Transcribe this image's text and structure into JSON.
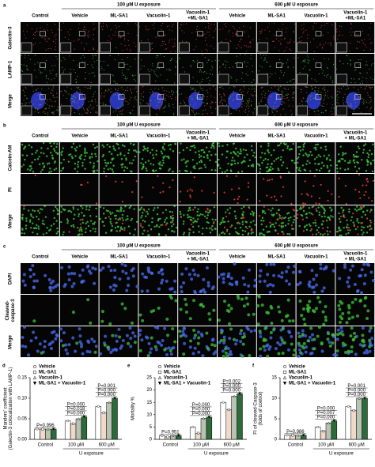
{
  "figure": {
    "panels": [
      {
        "letter": "a",
        "groups": [
          "100 μM U exposure",
          "600 μM U exposure"
        ],
        "columns": [
          [
            "Control"
          ],
          [
            "Vehicle"
          ],
          [
            "ML-SA1"
          ],
          [
            "Vacuolin-1"
          ],
          [
            "Vacuolin-1",
            "+ML-SA1"
          ],
          [
            "Vehicle"
          ],
          [
            "ML-SA1"
          ],
          [
            "Vacuolin-1"
          ],
          [
            "Vacuolin-1",
            "+ML-SA1"
          ]
        ],
        "rows": [
          {
            "label": [
              "Galectin-3"
            ],
            "color": "#e8413b"
          },
          {
            "label": [
              "LAMP-1"
            ],
            "color": "#3cc43c"
          },
          {
            "label": [
              "Merge"
            ],
            "color": "#000000"
          }
        ]
      },
      {
        "letter": "b",
        "groups": [
          "100 μM U exposure",
          "600 μM U exposure"
        ],
        "columns": [
          [
            "Control"
          ],
          [
            "Vehicle"
          ],
          [
            "ML-SA1"
          ],
          [
            "Vacuolin-1"
          ],
          [
            "Vacuolin-1",
            "+ ML-SA1"
          ],
          [
            "Vehicle"
          ],
          [
            "ML-SA1"
          ],
          [
            "Vacuolin-1"
          ],
          [
            "Vacuolin-1",
            "+ ML-SA1"
          ]
        ],
        "rows": [
          {
            "label": [
              "Calcein-AM"
            ],
            "color": "#3cc43c"
          },
          {
            "label": [
              "PI"
            ],
            "color": "#e8413b"
          },
          {
            "label": [
              "Merge"
            ],
            "color": "#000000"
          }
        ]
      },
      {
        "letter": "c",
        "groups": [
          "100 μM U exposure",
          "600 μM U exposure"
        ],
        "columns": [
          [
            "Control"
          ],
          [
            "Vehicle"
          ],
          [
            "ML-SA1"
          ],
          [
            "Vacuolin-1"
          ],
          [
            "Vacuolin-1",
            "+ ML-SA1"
          ],
          [
            "Vehicle"
          ],
          [
            "ML-SA1"
          ],
          [
            "Vacuolin-1"
          ],
          [
            "Vacuolin-1",
            "+ ML-SA1"
          ]
        ],
        "rows": [
          {
            "label": [
              "DAPI"
            ],
            "color": "#4a6cf0"
          },
          {
            "label": [
              "Cleaved-",
              "caspase-3"
            ],
            "color": "#3cc43c"
          },
          {
            "label": [
              "Merge"
            ],
            "color": "#000000"
          }
        ]
      }
    ]
  },
  "chart_data": [
    {
      "type": "bar",
      "letter": "d",
      "ylabel": [
        "Manders' coefficient",
        "(Galectin-3 colocalization with LAMP-1)"
      ],
      "xlabel": "U exposure",
      "categories": [
        "Control",
        "100 μM",
        "600 μM"
      ],
      "series": [
        {
          "name": "Vehicle",
          "color": "#ffffff",
          "values": [
            0.025,
            0.045,
            0.08
          ]
        },
        {
          "name": "ML-SA1",
          "color": "#efd9c8",
          "values": [
            0.025,
            0.038,
            0.065
          ]
        },
        {
          "name": "Vacuolin-1",
          "color": "#b9c3b3",
          "values": [
            0.025,
            0.05,
            0.09
          ]
        },
        {
          "name": "ML-SA1 + Vacuolin-1",
          "color": "#2e6b3a",
          "values": [
            0.025,
            0.055,
            0.1
          ]
        }
      ],
      "ylim": [
        0,
        0.15
      ],
      "yticks": [
        {
          "value": 0,
          "label": "0.00"
        },
        0.05,
        {
          "value": 0.1,
          "label": "0.10"
        },
        0.15
      ],
      "annotations": [
        "P=0.996",
        "P=0.000",
        "P=0.000",
        "P=0.018",
        "P=0.000",
        "P=0.000",
        "P=0.001"
      ]
    },
    {
      "type": "bar",
      "letter": "e",
      "ylabel": [
        "Mortality %"
      ],
      "xlabel": "U exposure",
      "categories": [
        "Control",
        "100 μM",
        "600 μM"
      ],
      "series": [
        {
          "name": "Vehicle",
          "color": "#ffffff",
          "values": [
            1.5,
            5,
            15
          ]
        },
        {
          "name": "ML-SA1",
          "color": "#efd9c8",
          "values": [
            1,
            2.5,
            12
          ]
        },
        {
          "name": "Vacuolin-1",
          "color": "#b9c3b3",
          "values": [
            1.5,
            8.5,
            17.5
          ]
        },
        {
          "name": "ML-SA1 + Vacuolin-1",
          "color": "#2e6b3a",
          "values": [
            1.5,
            9,
            18.5
          ]
        }
      ],
      "ylim": [
        0,
        25
      ],
      "yticks": [
        0,
        5,
        10,
        15,
        20,
        25
      ],
      "annotations": [
        "P=0.951",
        "P=0.000",
        "P=0.000",
        "P=0.000",
        "P=0.000",
        "P=0.000",
        "P=0.002"
      ]
    },
    {
      "type": "bar",
      "letter": "f",
      "ylabel": [
        "FI of cleaved-Caspase-3",
        "(folds of control)"
      ],
      "xlabel": "U exposure",
      "categories": [
        "Control",
        "100 μM",
        "600 μM"
      ],
      "series": [
        {
          "name": "Vehicle",
          "color": "#ffffff",
          "values": [
            1,
            3,
            8
          ]
        },
        {
          "name": "ML-SA1",
          "color": "#efd9c8",
          "values": [
            1,
            2,
            7
          ]
        },
        {
          "name": "Vacuolin-1",
          "color": "#b9c3b3",
          "values": [
            1,
            4,
            10
          ]
        },
        {
          "name": "ML-SA1 + Vacuolin-1",
          "color": "#2e6b3a",
          "values": [
            1,
            4.5,
            10
          ]
        }
      ],
      "ylim": [
        0,
        15
      ],
      "yticks": [
        0,
        5,
        10,
        15
      ],
      "annotations": [
        "P=0.986",
        "P=0.000",
        "P=0.000",
        "P=0.007",
        "P=0.000",
        "P=0.000",
        "P=0.001"
      ]
    }
  ]
}
